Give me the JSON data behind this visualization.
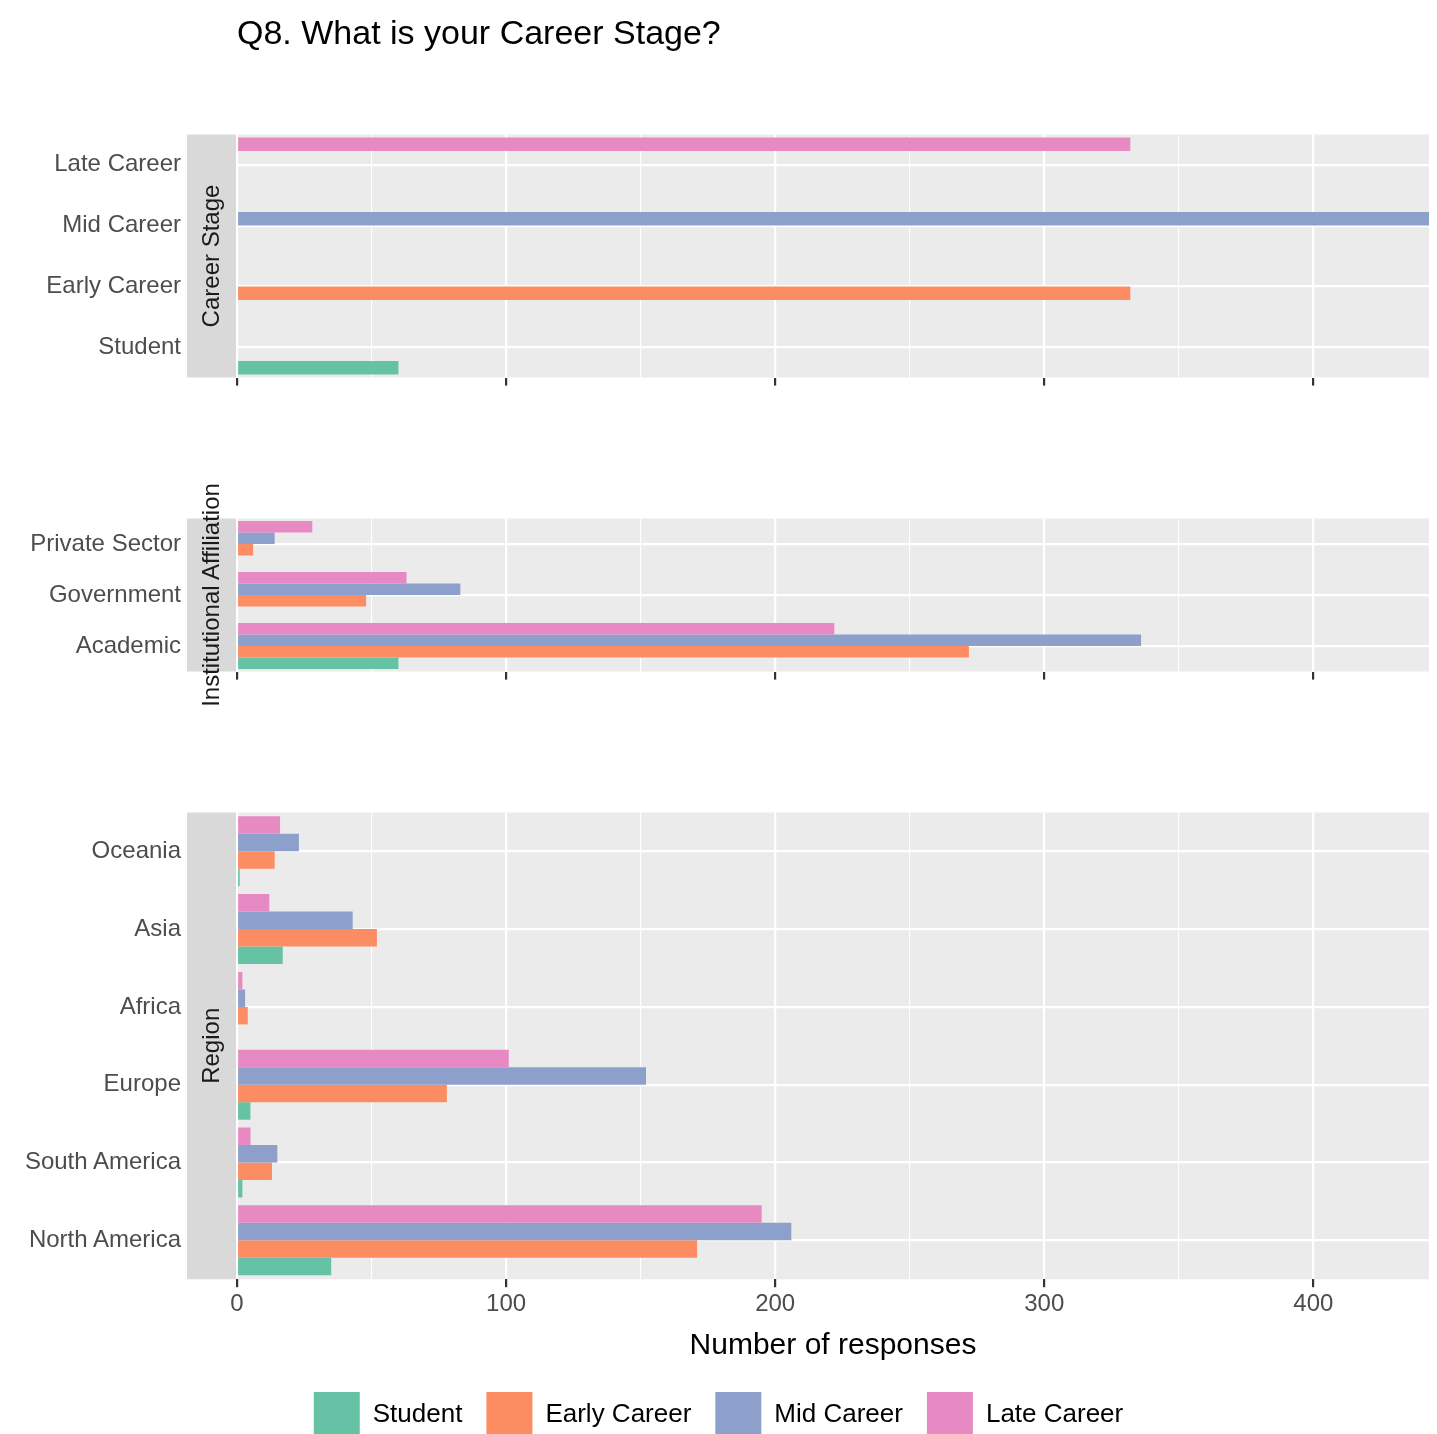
{
  "chart_data": [
    {
      "type": "bar",
      "orientation": "horizontal",
      "title": "Q8. What is your Career Stage?",
      "ylabel": "Career Stage",
      "categories": [
        "Late Career",
        "Mid Career",
        "Early Career",
        "Student"
      ],
      "series": [
        {
          "color": "#66c2a5",
          "values": [
            null,
            null,
            null,
            60
          ]
        },
        {
          "color": "#fc8d62",
          "values": [
            null,
            null,
            332,
            null
          ]
        },
        {
          "color": "#8da0cb",
          "values": [
            null,
            443,
            null,
            null
          ]
        },
        {
          "color": "#e78ac3",
          "values": [
            332,
            null,
            null,
            null
          ]
        }
      ],
      "xlim": [
        0,
        443
      ],
      "xticks": [
        0,
        {
          "value": 50,
          "label": null
        },
        100,
        {
          "value": 150,
          "label": null
        },
        200,
        {
          "value": 250,
          "label": null
        },
        300,
        {
          "value": 350,
          "label": null
        },
        400
      ],
      "grid": true,
      "tick_labels": "y"
    },
    {
      "type": "bar",
      "orientation": "horizontal",
      "ylabel": "Institutional Affiliation",
      "categories": [
        "Private Sector",
        "Government",
        "Academic"
      ],
      "series": [
        {
          "color": "#66c2a5",
          "values": [
            null,
            null,
            60
          ]
        },
        {
          "color": "#fc8d62",
          "values": [
            6,
            48,
            272
          ]
        },
        {
          "color": "#8da0cb",
          "values": [
            14,
            83,
            336
          ]
        },
        {
          "color": "#e78ac3",
          "values": [
            28,
            63,
            222
          ]
        }
      ],
      "xlim": [
        0,
        443
      ],
      "xticks": [
        0,
        {
          "value": 50,
          "label": null
        },
        100,
        {
          "value": 150,
          "label": null
        },
        200,
        {
          "value": 250,
          "label": null
        },
        300,
        {
          "value": 350,
          "label": null
        },
        400
      ],
      "grid": true,
      "tick_labels": "y"
    },
    {
      "type": "bar",
      "orientation": "horizontal",
      "ylabel": "Region",
      "xlabel": "Number of responses",
      "categories": [
        "Oceania",
        "Asia",
        "Africa",
        "Europe",
        "South America",
        "North America"
      ],
      "series": [
        {
          "name": "Student",
          "color": "#66c2a5",
          "values": [
            1,
            17,
            null,
            5,
            2,
            35
          ]
        },
        {
          "name": "Early Career",
          "color": "#fc8d62",
          "values": [
            14,
            52,
            4,
            78,
            13,
            171
          ]
        },
        {
          "name": "Mid Career",
          "color": "#8da0cb",
          "values": [
            23,
            43,
            3,
            152,
            15,
            206
          ]
        },
        {
          "name": "Late Career",
          "color": "#e78ac3",
          "values": [
            16,
            12,
            2,
            101,
            5,
            195
          ]
        }
      ],
      "xlim": [
        0,
        443
      ],
      "xticks": [
        0,
        {
          "value": 50,
          "label": null
        },
        100,
        {
          "value": 150,
          "label": null
        },
        200,
        {
          "value": 250,
          "label": null
        },
        300,
        {
          "value": 350,
          "label": null
        },
        400
      ],
      "grid": true,
      "legend": "bottom"
    }
  ]
}
